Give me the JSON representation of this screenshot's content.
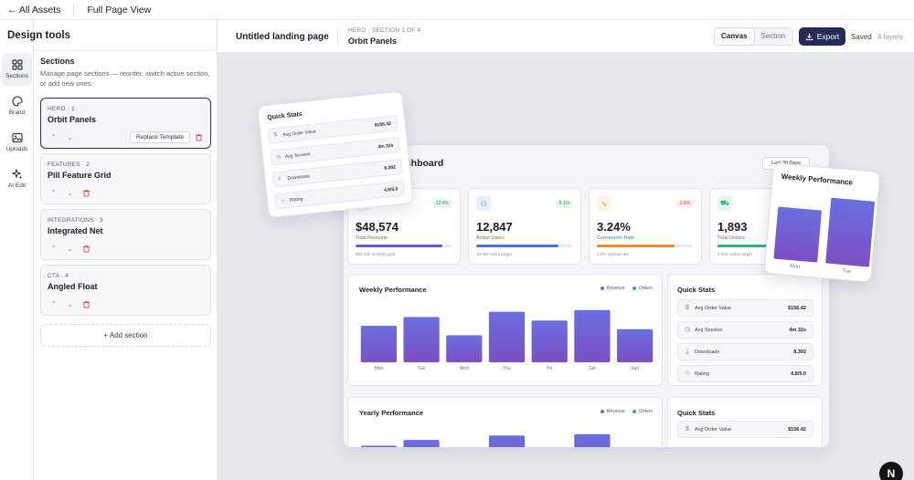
{
  "topbar": {
    "back_label": "← All Assets",
    "fullpage_label": "Full Page View"
  },
  "sidebar": {
    "title": "Design tools",
    "rail": [
      {
        "label": "Sections",
        "icon": "grid-icon"
      },
      {
        "label": "Brand",
        "icon": "palette-icon"
      },
      {
        "label": "Uploads",
        "icon": "image-icon"
      },
      {
        "label": "AI Edit",
        "icon": "sparkle-icon"
      }
    ],
    "sections_title": "Sections",
    "sections_desc": "Manage page sections — reorder, switch active section, or add new ones.",
    "cards": [
      {
        "tag": "HERO · 1",
        "name": "Orbit Panels",
        "active": true
      },
      {
        "tag": "FEATURES · 2",
        "name": "Pill Feature Grid",
        "active": false
      },
      {
        "tag": "INTEGRATIONS · 3",
        "name": "Integrated Net",
        "active": false
      },
      {
        "tag": "CTA · 4",
        "name": "Angled Float",
        "active": false
      }
    ],
    "replace_label": "Replace Template",
    "add_section_label": "+ Add section"
  },
  "editor": {
    "page_name": "Untitled landing page",
    "hero_tag": "HERO · SECTION 1 OF 4",
    "hero_name": "Orbit Panels",
    "mode_canvas": "Canvas",
    "mode_section": "Section",
    "export_label": "Export",
    "saved_label": "Saved",
    "layers_label": "4 layers"
  },
  "dashboard": {
    "title": "ashboard",
    "range_label": "Last 30 Days",
    "metrics": [
      {
        "value": "$48,574",
        "label": "Total Revenue",
        "goal": "$52,000 monthly goal",
        "badge": "12.4%",
        "badge_color": "#1f9d5c",
        "badge_bg": "#e3f6ea",
        "bar_color": "#5b5fd6",
        "progress": 0.9,
        "icon": "dollar-icon",
        "icon_bg": "#eef0ff"
      },
      {
        "value": "12,847",
        "label": "Active Users",
        "goal": "15,000 users target",
        "badge": "8.1%",
        "badge_color": "#1f9d5c",
        "badge_bg": "#e3f6ea",
        "bar_color": "#3d78e6",
        "progress": 0.86,
        "icon": "users-icon",
        "icon_bg": "#e8f0fe"
      },
      {
        "value": "3.24%",
        "label": "Conversion Rate",
        "goal": "4.0% optimal rate",
        "badge": "2.5%",
        "badge_color": "#d9434a",
        "badge_bg": "#fde7e8",
        "bar_color": "#f08a24",
        "progress": 0.81,
        "icon": "pulse-icon",
        "icon_bg": "#fff1e3"
      },
      {
        "value": "1,893",
        "label": "Total Orders",
        "goal": "2,000 orders target",
        "badge": "",
        "badge_color": "#1f9d5c",
        "badge_bg": "#e3f6ea",
        "bar_color": "#2eb872",
        "progress": 0.95,
        "icon": "cart-icon",
        "icon_bg": "#e3f6ea"
      }
    ],
    "weekly_title": "Weekly Performance",
    "yearly_title": "Yearly Performance",
    "legend_revenue": "Revenue",
    "legend_orders": "Orders",
    "revenue_color": "#7c5cd6",
    "orders_color": "#2eb872",
    "quick_stats_title": "Quick Stats",
    "quick_stats": [
      {
        "label": "Avg Order Value",
        "value": "$156.42",
        "icon": "dollar-icon"
      },
      {
        "label": "Avg Session",
        "value": "4m 32s",
        "icon": "clock-icon"
      },
      {
        "label": "Downloads",
        "value": "8,392",
        "icon": "download-icon"
      },
      {
        "label": "Rating",
        "value": "4.8/5.0",
        "icon": "star-icon"
      }
    ],
    "quick_stats_2": [
      {
        "label": "Avg Order Value",
        "value": "$156.42",
        "icon": "dollar-icon"
      }
    ]
  },
  "float_quick_stats": {
    "title": "Quick Stats",
    "rows": [
      {
        "label": "Avg Order Value",
        "value": "$156.42",
        "icon": "dollar-icon"
      },
      {
        "label": "Avg Session",
        "value": "4m 32s",
        "icon": "clock-icon"
      },
      {
        "label": "Downloads",
        "value": "8,392",
        "icon": "download-icon"
      },
      {
        "label": "Rating",
        "value": "4.8/5.0",
        "icon": "star-icon"
      }
    ]
  },
  "float_weekly": {
    "title": "Weekly Performance",
    "categories": [
      "Mon",
      "Tue"
    ],
    "values": [
      50,
      63
    ]
  },
  "chart_data": [
    {
      "type": "bar",
      "title": "Weekly Performance",
      "categories": [
        "Mon",
        "Tue",
        "Wed",
        "Thu",
        "Fri",
        "Sat",
        "Sun"
      ],
      "series": [
        {
          "name": "Revenue",
          "values": [
            42,
            52,
            31,
            58,
            48,
            60,
            38
          ]
        }
      ],
      "ylim": [
        0,
        65
      ]
    },
    {
      "type": "bar",
      "title": "Yearly Performance",
      "categories": [
        "",
        "",
        "",
        "",
        "",
        "",
        ""
      ],
      "series": [
        {
          "name": "Revenue",
          "values": [
            48,
            57,
            0,
            64,
            40,
            66,
            44
          ]
        }
      ],
      "ylim": [
        0,
        80
      ]
    }
  ],
  "next_badge": "N"
}
